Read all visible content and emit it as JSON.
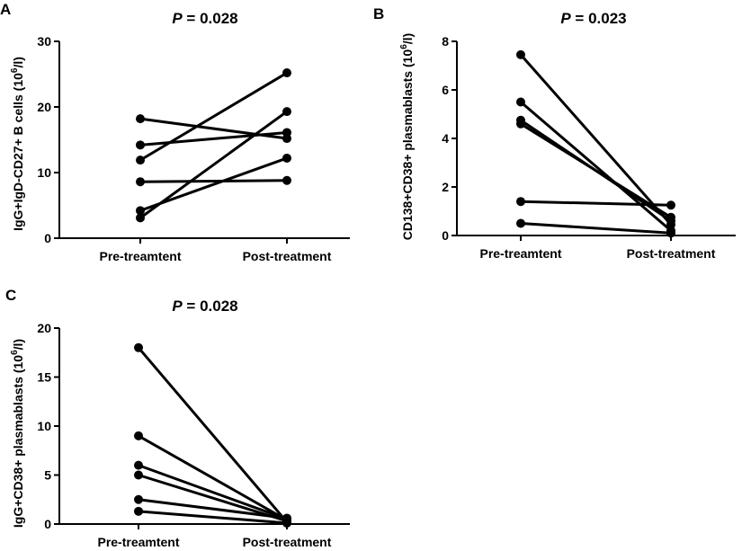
{
  "figure": {
    "panels": [
      {
        "letter": "A",
        "title_italic": "P",
        "title_rest": " = 0.028"
      },
      {
        "letter": "B",
        "title_italic": "P",
        "title_rest": " = 0.023"
      },
      {
        "letter": "C",
        "title_italic": "P",
        "title_rest": " = 0.028"
      }
    ]
  },
  "chart_data": [
    {
      "type": "line",
      "title": "P = 0.028",
      "ylabel": "IgG+IgD-CD27+ B cells (10^6/l)",
      "ylabel_base": "IgG+IgD-CD27+ B cells (10",
      "ylabel_sup": "6",
      "ylabel_end": "/l)",
      "categories": [
        "Pre-treamtent",
        "Post-treatment"
      ],
      "ylim": [
        0,
        30
      ],
      "yticks": [
        0,
        10,
        20,
        30
      ],
      "grid": false,
      "series": [
        {
          "values": [
            18.2,
            15.2
          ]
        },
        {
          "values": [
            14.2,
            16.1
          ]
        },
        {
          "values": [
            11.9,
            25.2
          ]
        },
        {
          "values": [
            8.6,
            8.8
          ]
        },
        {
          "values": [
            4.2,
            12.2
          ]
        },
        {
          "values": [
            3.1,
            19.3
          ]
        }
      ]
    },
    {
      "type": "line",
      "title": "P = 0.023",
      "ylabel": "CD138+CD38+ plasmablasts (10^6/l)",
      "ylabel_base": "CD138+CD38+ plasmablasts (10",
      "ylabel_sup": "6",
      "ylabel_end": "/l)",
      "categories": [
        "Pre-treamtent",
        "Post-treatment"
      ],
      "ylim": [
        0,
        8
      ],
      "yticks": [
        0,
        2,
        4,
        6,
        8
      ],
      "grid": false,
      "series": [
        {
          "values": [
            7.45,
            0.45
          ]
        },
        {
          "values": [
            5.5,
            0.2
          ]
        },
        {
          "values": [
            4.75,
            0.6
          ]
        },
        {
          "values": [
            4.6,
            0.75
          ]
        },
        {
          "values": [
            1.4,
            1.25
          ]
        },
        {
          "values": [
            0.5,
            0.1
          ]
        }
      ]
    },
    {
      "type": "line",
      "title": "P = 0.028",
      "ylabel": "IgG+CD38+ plasmablasts (10^6/l)",
      "ylabel_base": "IgG+CD38+ plasmablasts (10",
      "ylabel_sup": "6",
      "ylabel_end": "/l)",
      "categories": [
        "Pre-treamtent",
        "Post-treatment"
      ],
      "ylim": [
        0,
        20
      ],
      "yticks": [
        0,
        5,
        10,
        15,
        20
      ],
      "grid": false,
      "series": [
        {
          "values": [
            18.0,
            0.2
          ]
        },
        {
          "values": [
            9.0,
            0.4
          ]
        },
        {
          "values": [
            6.0,
            0.5
          ]
        },
        {
          "values": [
            5.0,
            0.3
          ]
        },
        {
          "values": [
            2.5,
            0.6
          ]
        },
        {
          "values": [
            1.3,
            0.1
          ]
        }
      ]
    }
  ]
}
